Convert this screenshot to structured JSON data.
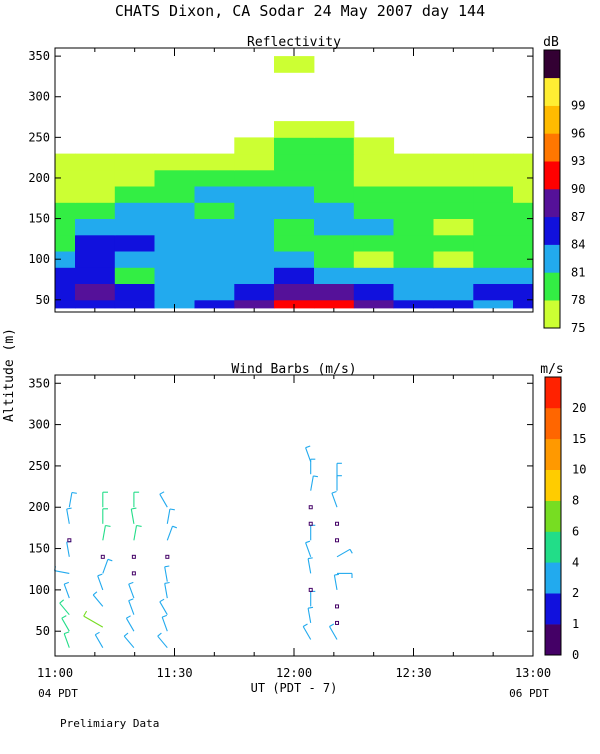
{
  "title": "CHATS Dixon, CA  Sodar  24 May 2007  day 144",
  "shared_y_label": "Altitude (m)",
  "x_axis": {
    "ticks": [
      "11:00",
      "11:30",
      "12:00",
      "12:30",
      "13:00"
    ],
    "label": "UT  (PDT - 7)",
    "left_note": "04 PDT",
    "right_note": "06 PDT"
  },
  "footer_note": "Prelimiary Data",
  "colors": {
    "reflectivity_scale": [
      "#ccff33",
      "#33ee44",
      "#22aaee",
      "#1111dd",
      "#551199",
      "#ff0000",
      "#ff7700",
      "#ffbb00",
      "#ffee33",
      "#330033"
    ],
    "wind_scale": [
      "#440066",
      "#1111dd",
      "#22aaee",
      "#22dd88",
      "#77dd22",
      "#ffcc00",
      "#ff9900",
      "#ff6600",
      "#ff2200"
    ]
  },
  "chart_data": [
    {
      "type": "heatmap",
      "title": "Reflectivity",
      "colorbar": {
        "unit": "dB",
        "ticks": [
          "75",
          "78",
          "81",
          "84",
          "87",
          "90",
          "93",
          "96",
          "99"
        ],
        "bounds": [
          75,
          78,
          81,
          84,
          87,
          90,
          93,
          96,
          99,
          102
        ]
      },
      "x_hours": [
        11.0,
        11.167,
        11.333,
        11.5,
        11.667,
        11.833,
        12.0,
        12.167,
        12.333,
        12.5,
        12.667,
        12.833,
        13.0
      ],
      "altitudes_m": [
        40,
        60,
        80,
        100,
        120,
        140,
        160,
        180,
        200,
        220,
        240,
        260,
        280,
        300,
        320,
        340
      ],
      "xlim": [
        11,
        13
      ],
      "ylim": [
        35,
        360
      ],
      "yticks": [
        50,
        100,
        150,
        200,
        250,
        300,
        350
      ],
      "grid": false,
      "dB": [
        [
          86,
          84,
          84,
          81,
          84,
          87,
          90,
          90,
          87,
          84,
          84,
          81,
          84
        ],
        [
          84,
          87,
          84,
          81,
          81,
          84,
          87,
          88,
          84,
          81,
          81,
          84,
          84
        ],
        [
          84,
          84,
          78,
          81,
          81,
          81,
          84,
          81,
          81,
          81,
          81,
          81,
          81
        ],
        [
          81,
          84,
          81,
          81,
          81,
          81,
          81,
          78,
          75,
          78,
          75,
          78,
          78
        ],
        [
          78,
          84,
          84,
          81,
          81,
          81,
          78,
          78,
          78,
          78,
          78,
          78,
          78
        ],
        [
          78,
          81,
          81,
          81,
          81,
          81,
          78,
          81,
          81,
          78,
          75,
          78,
          78
        ],
        [
          78,
          78,
          81,
          81,
          78,
          81,
          81,
          81,
          78,
          78,
          78,
          78,
          78
        ],
        [
          75,
          75,
          78,
          78,
          81,
          81,
          81,
          78,
          78,
          78,
          78,
          78,
          75
        ],
        [
          75,
          75,
          75,
          78,
          78,
          78,
          78,
          78,
          75,
          75,
          75,
          75,
          75
        ],
        [
          75,
          75,
          75,
          75,
          75,
          75,
          78,
          78,
          75,
          75,
          75,
          75,
          75
        ],
        [
          null,
          null,
          null,
          null,
          null,
          75,
          78,
          78,
          75,
          null,
          null,
          null,
          null
        ],
        [
          null,
          null,
          null,
          null,
          null,
          null,
          75,
          75,
          null,
          null,
          null,
          null,
          null
        ],
        [
          null,
          null,
          null,
          null,
          null,
          null,
          null,
          null,
          null,
          null,
          null,
          null,
          null
        ],
        [
          null,
          null,
          null,
          null,
          null,
          null,
          null,
          null,
          null,
          null,
          null,
          null,
          null
        ],
        [
          null,
          null,
          null,
          null,
          null,
          null,
          null,
          null,
          null,
          null,
          null,
          null,
          null
        ],
        [
          null,
          null,
          null,
          null,
          null,
          null,
          75,
          null,
          null,
          null,
          null,
          null,
          null
        ]
      ]
    },
    {
      "type": "scatter",
      "title": "Wind Barbs (m/s)",
      "colorbar": {
        "unit": "m/s",
        "ticks": [
          "0",
          "1",
          "2",
          "4",
          "6",
          "8",
          "10",
          "15",
          "20"
        ],
        "bounds": [
          0,
          1,
          2,
          4,
          6,
          8,
          10,
          15,
          20,
          24
        ]
      },
      "xlim": [
        11,
        13
      ],
      "ylim": [
        20,
        360
      ],
      "yticks": [
        50,
        100,
        150,
        200,
        250,
        300,
        350
      ],
      "grid": false,
      "profiles": [
        {
          "time": 11.06,
          "altitudes": [
            30,
            50,
            70,
            90,
            120,
            140,
            160,
            180,
            200
          ],
          "speeds": [
            4,
            4,
            4,
            3,
            2,
            2,
            0.5,
            3,
            3
          ],
          "dir_deg": [
            340,
            330,
            320,
            340,
            280,
            350,
            0,
            350,
            10
          ]
        },
        {
          "time": 11.2,
          "altitudes": [
            30,
            55,
            80,
            100,
            120,
            140,
            160,
            180,
            200
          ],
          "speeds": [
            3,
            6,
            3,
            3,
            2,
            0.5,
            4,
            4,
            4
          ],
          "dir_deg": [
            330,
            300,
            320,
            340,
            20,
            0,
            10,
            0,
            0
          ],
          "long_at": 55
        },
        {
          "time": 11.33,
          "altitudes": [
            30,
            50,
            70,
            90,
            120,
            140,
            160,
            180,
            200
          ],
          "speeds": [
            3,
            3,
            3,
            3,
            0.5,
            0.5,
            4,
            4,
            4
          ],
          "dir_deg": [
            320,
            330,
            340,
            340,
            0,
            0,
            10,
            350,
            0
          ]
        },
        {
          "time": 11.47,
          "altitudes": [
            30,
            50,
            70,
            90,
            110,
            140,
            160,
            180,
            200
          ],
          "speeds": [
            3,
            3,
            3,
            3,
            2,
            0.5,
            2,
            3,
            3
          ],
          "dir_deg": [
            320,
            340,
            330,
            350,
            350,
            0,
            20,
            10,
            330
          ]
        },
        {
          "time": 12.07,
          "altitudes": [
            40,
            60,
            80,
            100,
            120,
            140,
            160,
            180,
            200,
            220,
            240,
            255
          ],
          "speeds": [
            3,
            3,
            2,
            0.5,
            2,
            2,
            2,
            0.5,
            0.5,
            2,
            2,
            3
          ],
          "dir_deg": [
            330,
            350,
            0,
            0,
            350,
            340,
            0,
            0,
            0,
            10,
            0,
            340
          ]
        },
        {
          "time": 12.18,
          "altitudes": [
            40,
            60,
            80,
            100,
            120,
            140,
            160,
            180,
            200,
            220,
            235
          ],
          "speeds": [
            3,
            0.5,
            0.5,
            2,
            2,
            2,
            0.5,
            0.5,
            3,
            3,
            3
          ],
          "dir_deg": [
            330,
            0,
            0,
            350,
            90,
            60,
            0,
            0,
            340,
            0,
            0
          ]
        }
      ]
    }
  ]
}
